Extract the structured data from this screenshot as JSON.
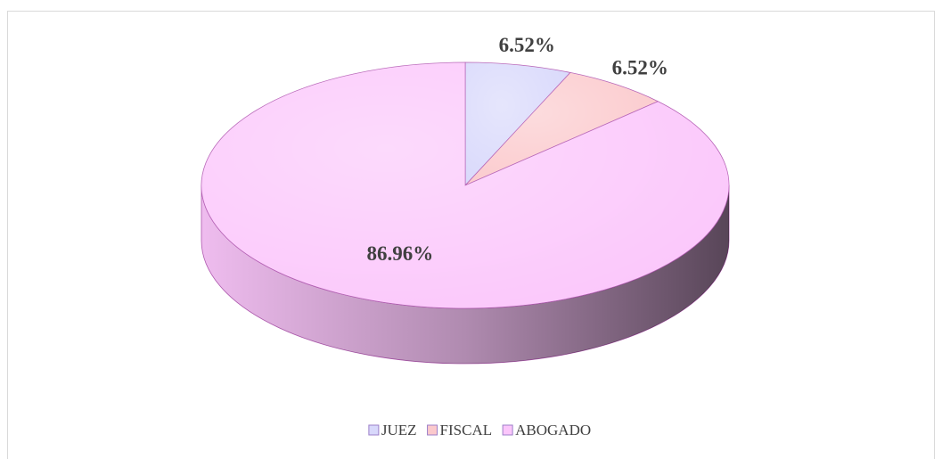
{
  "chart_data": {
    "type": "pie",
    "categories": [
      "JUEZ",
      "FISCAL",
      "ABOGADO"
    ],
    "values": [
      6.52,
      6.52,
      86.96
    ],
    "value_labels": [
      "6.52%",
      "6.52%",
      "86.96%"
    ],
    "colors": [
      "#d8d8fb",
      "#fbc9cc",
      "#fbc6fb"
    ],
    "legend": "bottom"
  }
}
